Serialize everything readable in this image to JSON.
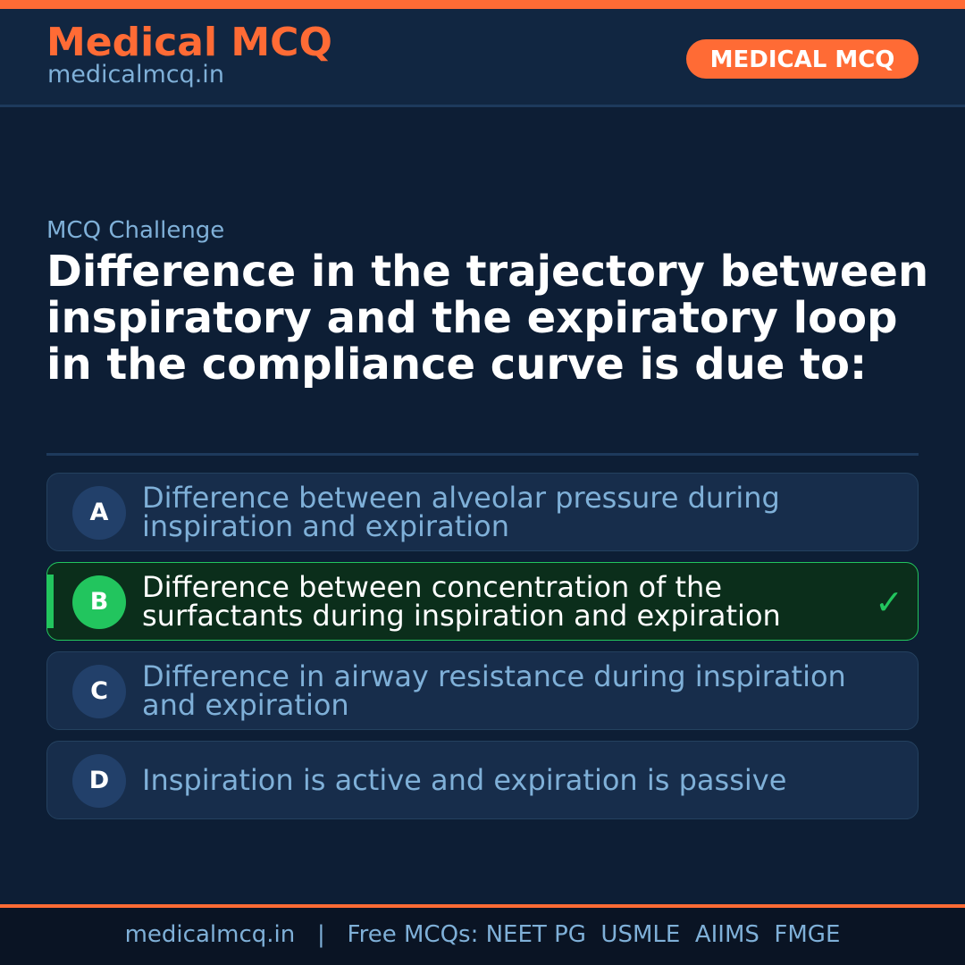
{
  "header": {
    "brand": "Medical MCQ",
    "url": "medicalmcq.in",
    "badge": "MEDICAL MCQ"
  },
  "question": {
    "kicker": "MCQ Challenge",
    "text": "Difference in the trajectory between inspiratory and the expiratory loop in the compliance curve is due to:"
  },
  "options": [
    {
      "letter": "A",
      "text": "Difference between alveolar pressure during inspiration and expiration",
      "correct": false
    },
    {
      "letter": "B",
      "text": "Difference between concentration of the surfactants during inspiration and expiration",
      "correct": true
    },
    {
      "letter": "C",
      "text": "Difference in airway resistance during inspiration and expiration",
      "correct": false
    },
    {
      "letter": "D",
      "text": "Inspiration is active and expiration is passive",
      "correct": false
    }
  ],
  "footer": {
    "text": "medicalmcq.in   |   Free MCQs: NEET PG  USMLE  AIIMS  FMGE"
  },
  "colors": {
    "accent": "#ff6b35",
    "correct": "#22c55e",
    "background": "#0d1e35"
  }
}
